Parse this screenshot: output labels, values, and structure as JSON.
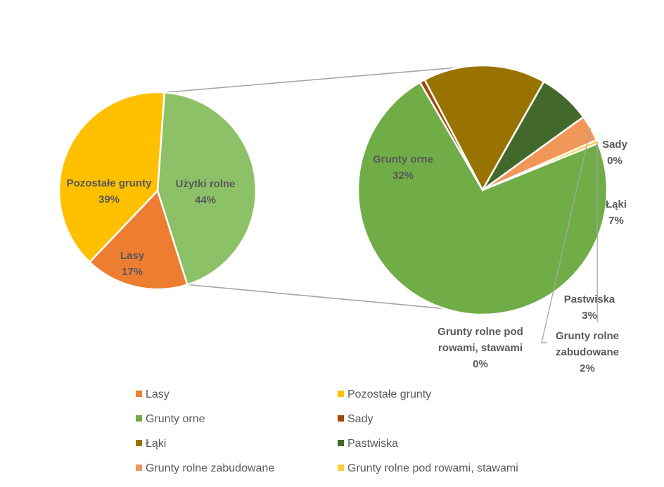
{
  "chart_data": {
    "type": "pie-of-pie",
    "main_pie": {
      "slices": [
        {
          "name": "Użytki rolne",
          "value": 44,
          "label": "44%",
          "color": "#8CC168"
        },
        {
          "name": "Lasy",
          "value": 17,
          "label": "17%",
          "color": "#ED7D31"
        },
        {
          "name": "Pozostałe grunty",
          "value": 39,
          "label": "39%",
          "color": "#FFC000"
        }
      ]
    },
    "secondary_pie": {
      "slices": [
        {
          "name": "Grunty orne",
          "value": 32,
          "label": "32%",
          "color": "#70AD47"
        },
        {
          "name": "Sady",
          "value": 0.3,
          "label": "0%",
          "color": "#9E480E"
        },
        {
          "name": "Łąki",
          "value": 7,
          "label": "7%",
          "color": "#997300"
        },
        {
          "name": "Pastwiska",
          "value": 3,
          "label": "3%",
          "color": "#43682B"
        },
        {
          "name": "Grunty rolne zabudowane",
          "value": 1.5,
          "label": "2%",
          "color": "#F1975A"
        },
        {
          "name": "Grunty rolne pod rowami, stawami",
          "value": 0.2,
          "label": "0%",
          "color": "#FFCD33"
        }
      ]
    },
    "legend": {
      "position": "bottom",
      "items": [
        {
          "name": "Lasy",
          "color": "#ED7D31"
        },
        {
          "name": "Pozostałe grunty",
          "color": "#FFC000"
        },
        {
          "name": "Grunty orne",
          "color": "#70AD47"
        },
        {
          "name": "Sady",
          "color": "#9E480E"
        },
        {
          "name": "Łąki",
          "color": "#997300"
        },
        {
          "name": "Pastwiska",
          "color": "#43682B"
        },
        {
          "name": "Grunty rolne zabudowane",
          "color": "#F1975A"
        },
        {
          "name": "Grunty rolne pod rowami, stawami",
          "color": "#FFCD33"
        }
      ]
    }
  }
}
